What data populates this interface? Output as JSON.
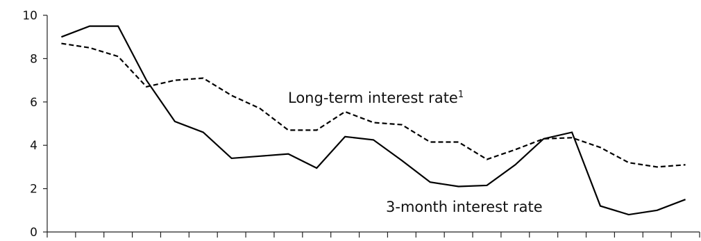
{
  "chart_data": {
    "type": "line",
    "title": "",
    "xlabel": "",
    "ylabel": "",
    "ylim": [
      0,
      10
    ],
    "yticks": [
      "0",
      "2",
      "4",
      "6",
      "8",
      "10"
    ],
    "x_tick_count": 23,
    "grid": false,
    "legend": "none",
    "series": [
      {
        "name": "3-month interest rate",
        "style": "solid",
        "color": "#000000",
        "values": [
          9.0,
          9.5,
          9.5,
          7.0,
          5.1,
          4.6,
          3.4,
          3.5,
          3.6,
          2.95,
          4.4,
          4.25,
          3.3,
          2.3,
          2.1,
          2.15,
          3.1,
          4.3,
          4.6,
          1.2,
          0.8,
          1.0,
          1.5
        ]
      },
      {
        "name": "Long-term interest rate",
        "name_superscript": "1",
        "style": "dashed",
        "color": "#000000",
        "values": [
          8.7,
          8.5,
          8.1,
          6.7,
          7.0,
          7.1,
          6.3,
          5.7,
          4.7,
          4.7,
          5.55,
          5.05,
          4.95,
          4.15,
          4.15,
          3.35,
          3.8,
          4.3,
          4.35,
          3.9,
          3.2,
          3.0,
          3.1
        ]
      }
    ]
  }
}
